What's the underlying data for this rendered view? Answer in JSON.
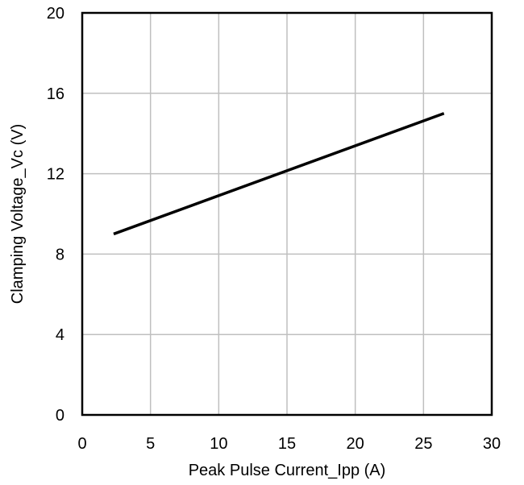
{
  "chart_data": {
    "type": "line",
    "title": "",
    "xlabel": "Peak Pulse Current_Ipp  (A)",
    "ylabel": "Clamping Voltage_Vc (V)",
    "xlim": [
      0,
      30
    ],
    "ylim": [
      0,
      20
    ],
    "xticks": [
      0,
      5,
      10,
      15,
      20,
      25,
      30
    ],
    "yticks": [
      0,
      4,
      8,
      12,
      16,
      20
    ],
    "xtick_labels": [
      "0",
      "5",
      "10",
      "15",
      "20",
      "25",
      "30"
    ],
    "ytick_labels": [
      "0",
      "4",
      "8",
      "12",
      "16",
      "20"
    ],
    "grid": true,
    "legend": "none",
    "series": [
      {
        "color": "#000000",
        "x": [
          2.3,
          26.5
        ],
        "y": [
          9.0,
          15.0
        ]
      }
    ]
  }
}
